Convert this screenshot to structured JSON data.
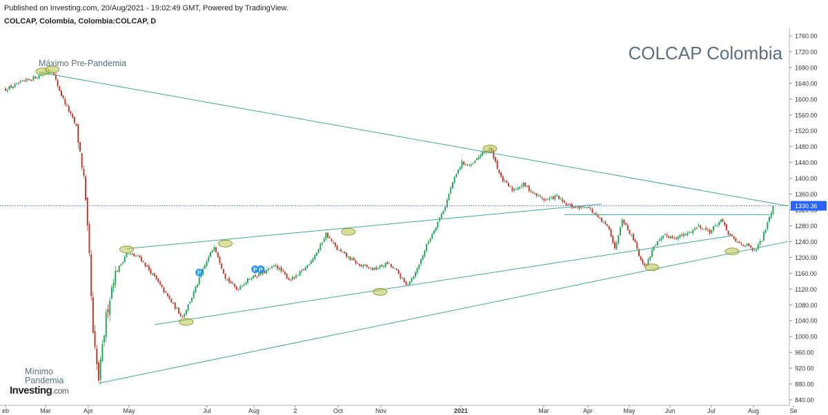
{
  "header": {
    "published": "Published on Investing.com, 20/Aug/2021 - 19:02:49 GMT, Powered by TradingView.",
    "symbol": "COLCAP, Colombia, Colombia:COLCAP, D"
  },
  "watermark": "COLCAP Colombia",
  "logo": {
    "main": "Investing",
    "suffix": ".com"
  },
  "colors": {
    "up": "#26a65b",
    "down": "#c0392b",
    "trend": "#3aa894",
    "ellipse": "#b8c24a",
    "price_line": "#3b5bdb",
    "price_tag": "#2962ff"
  },
  "chart_data": {
    "type": "candlestick",
    "title": "COLCAP Colombia",
    "ylim": [
      840,
      1760
    ],
    "y_ticks": [
      "1760.00",
      "1720.00",
      "1680.00",
      "1640.00",
      "1600.00",
      "1560.00",
      "1520.00",
      "1480.00",
      "1440.00",
      "1400.00",
      "1360.00",
      "1320.00",
      "1280.00",
      "1240.00",
      "1200.00",
      "1160.00",
      "1120.00",
      "1080.00",
      "1040.00",
      "1000.00",
      "960.00",
      "920.00",
      "880.00",
      "840.00"
    ],
    "x_ticks": [
      "eb",
      "Mar",
      "Apr",
      "May",
      "Jul",
      "Aug",
      "2",
      "Oct",
      "Nov",
      "2021",
      "Mar",
      "Apr",
      "May",
      "Jun",
      "Jul",
      "Aug",
      "Se"
    ],
    "last_price": "1330.36",
    "anchors": [
      [
        0,
        1625
      ],
      [
        18,
        1660
      ],
      [
        25,
        1672
      ],
      [
        30,
        1610
      ],
      [
        38,
        1530
      ],
      [
        42,
        1400
      ],
      [
        45,
        1200
      ],
      [
        47,
        1000
      ],
      [
        50,
        890
      ],
      [
        54,
        1050
      ],
      [
        58,
        1150
      ],
      [
        65,
        1210
      ],
      [
        72,
        1200
      ],
      [
        80,
        1150
      ],
      [
        90,
        1080
      ],
      [
        95,
        1050
      ],
      [
        100,
        1100
      ],
      [
        108,
        1190
      ],
      [
        112,
        1230
      ],
      [
        118,
        1150
      ],
      [
        124,
        1120
      ],
      [
        132,
        1150
      ],
      [
        138,
        1160
      ],
      [
        145,
        1180
      ],
      [
        152,
        1145
      ],
      [
        156,
        1150
      ],
      [
        162,
        1180
      ],
      [
        168,
        1220
      ],
      [
        172,
        1260
      ],
      [
        178,
        1220
      ],
      [
        184,
        1200
      ],
      [
        190,
        1180
      ],
      [
        198,
        1170
      ],
      [
        205,
        1185
      ],
      [
        210,
        1165
      ],
      [
        215,
        1130
      ],
      [
        220,
        1160
      ],
      [
        226,
        1230
      ],
      [
        232,
        1290
      ],
      [
        236,
        1330
      ],
      [
        240,
        1390
      ],
      [
        245,
        1440
      ],
      [
        250,
        1430
      ],
      [
        255,
        1460
      ],
      [
        260,
        1475
      ],
      [
        262,
        1455
      ],
      [
        266,
        1400
      ],
      [
        272,
        1370
      ],
      [
        278,
        1385
      ],
      [
        284,
        1360
      ],
      [
        290,
        1345
      ],
      [
        296,
        1355
      ],
      [
        300,
        1335
      ],
      [
        306,
        1325
      ],
      [
        312,
        1330
      ],
      [
        316,
        1310
      ],
      [
        320,
        1290
      ],
      [
        324,
        1275
      ],
      [
        327,
        1220
      ],
      [
        331,
        1300
      ],
      [
        334,
        1270
      ],
      [
        338,
        1240
      ],
      [
        341,
        1190
      ],
      [
        344,
        1180
      ],
      [
        348,
        1230
      ],
      [
        354,
        1255
      ],
      [
        360,
        1250
      ],
      [
        366,
        1260
      ],
      [
        372,
        1280
      ],
      [
        378,
        1265
      ],
      [
        384,
        1295
      ],
      [
        388,
        1260
      ],
      [
        392,
        1240
      ],
      [
        398,
        1230
      ],
      [
        402,
        1215
      ],
      [
        406,
        1245
      ],
      [
        409,
        1290
      ],
      [
        412,
        1330
      ]
    ],
    "trendlines": [
      {
        "name": "pre-pandemic resistance",
        "from": [
          18,
          1668
        ],
        "to": [
          420,
          1330
        ]
      },
      {
        "name": "pandemic low support",
        "from": [
          50,
          882
        ],
        "to": [
          420,
          1240
        ]
      },
      {
        "name": "upper channel",
        "from": [
          65,
          1222
        ],
        "to": [
          320,
          1335
        ]
      },
      {
        "name": "lower channel",
        "from": [
          80,
          1030
        ],
        "to": [
          390,
          1255
        ]
      },
      {
        "name": "horizontal resistance",
        "from": [
          300,
          1308
        ],
        "to": [
          410,
          1308
        ]
      }
    ],
    "highlights": [
      [
        20,
        1670
      ],
      [
        260,
        1475
      ],
      [
        65,
        1220
      ],
      [
        97,
        1037
      ],
      [
        118,
        1235
      ],
      [
        184,
        1265
      ],
      [
        201,
        1113
      ],
      [
        390,
        1215
      ],
      [
        347,
        1175
      ],
      [
        25,
        1675
      ]
    ],
    "events": [
      {
        "bar": 104,
        "price": 1162,
        "label": "P"
      },
      {
        "bar": 134,
        "price": 1170,
        "label": "P"
      },
      {
        "bar": 137,
        "price": 1170,
        "label": "P"
      }
    ],
    "annotations": {
      "max_label": "Máximo Pre-Pandemia",
      "min_label_1": "Mínimo",
      "min_label_2": "Pandemia"
    }
  }
}
